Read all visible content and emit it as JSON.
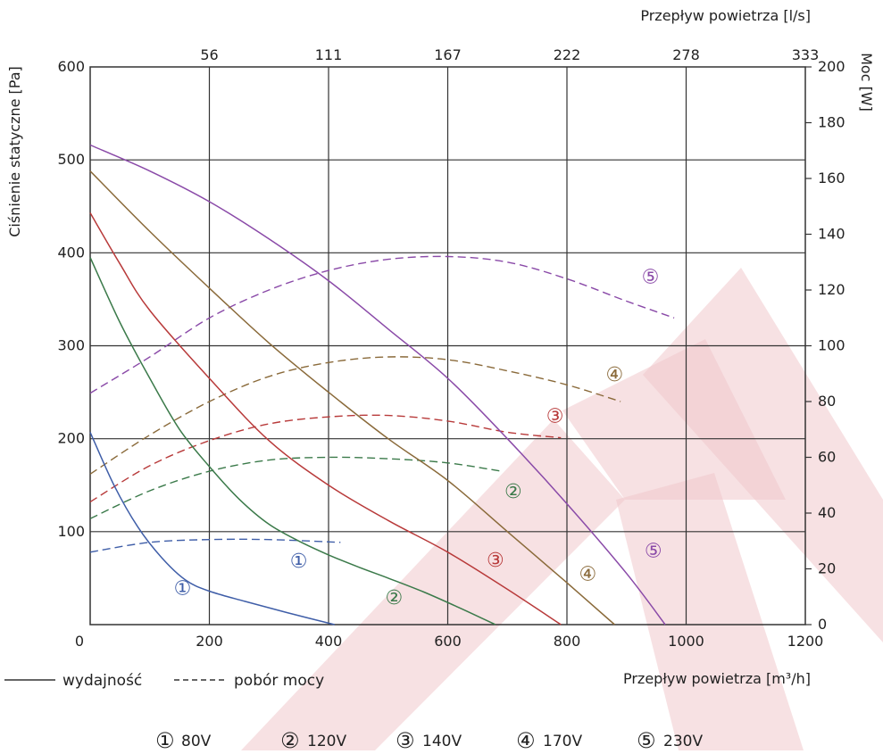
{
  "chart_data": {
    "type": "line",
    "x_axis": {
      "label": "Przepływ powietrza [m³/h]",
      "range": [
        0,
        1200
      ],
      "ticks": [
        0,
        200,
        400,
        600,
        800,
        1000,
        1200
      ],
      "tick_labels": [
        "0",
        "200",
        "400",
        "600",
        "800",
        "1000",
        "1200"
      ]
    },
    "x2_axis": {
      "label": "Przepływ powietrza [l/s]",
      "tick_labels": [
        "56",
        "111",
        "167",
        "222",
        "278",
        "333"
      ],
      "tick_positions_m3h": [
        200,
        400,
        600,
        800,
        1000,
        1200
      ]
    },
    "y_axis": {
      "label": "Ciśnienie statyczne [Pa]",
      "range": [
        0,
        600
      ],
      "ticks": [
        100,
        200,
        300,
        400,
        500,
        600
      ],
      "tick_labels": [
        "100",
        "200",
        "300",
        "400",
        "500",
        "600"
      ]
    },
    "y2_axis": {
      "label": "Moc [W]",
      "range": [
        0,
        200
      ],
      "ticks": [
        0,
        20,
        40,
        60,
        80,
        100,
        120,
        140,
        160,
        180,
        200
      ],
      "tick_labels": [
        "0",
        "20",
        "40",
        "60",
        "80",
        "100",
        "120",
        "140",
        "160",
        "180",
        "200"
      ]
    },
    "grid": true,
    "pressure_series": [
      {
        "id": 1,
        "color": "#3f5ea8",
        "label": "①",
        "label_pos": [
          155,
          40
        ],
        "points": [
          [
            0,
            207
          ],
          [
            40,
            150
          ],
          [
            80,
            105
          ],
          [
            120,
            72
          ],
          [
            160,
            48
          ],
          [
            200,
            36
          ],
          [
            260,
            25
          ],
          [
            330,
            13
          ],
          [
            410,
            0
          ]
        ]
      },
      {
        "id": 2,
        "color": "#3b7a4a",
        "label": "②",
        "label_pos": [
          510,
          30
        ],
        "points": [
          [
            0,
            395
          ],
          [
            50,
            325
          ],
          [
            100,
            265
          ],
          [
            150,
            210
          ],
          [
            200,
            170
          ],
          [
            250,
            135
          ],
          [
            300,
            108
          ],
          [
            350,
            90
          ],
          [
            400,
            75
          ],
          [
            450,
            62
          ],
          [
            500,
            50
          ],
          [
            560,
            35
          ],
          [
            620,
            18
          ],
          [
            680,
            0
          ]
        ]
      },
      {
        "id": 3,
        "color": "#b83a3a",
        "label": "③",
        "label_pos": [
          680,
          70
        ],
        "points": [
          [
            0,
            443
          ],
          [
            50,
            388
          ],
          [
            100,
            338
          ],
          [
            200,
            265
          ],
          [
            300,
            198
          ],
          [
            400,
            150
          ],
          [
            500,
            112
          ],
          [
            600,
            78
          ],
          [
            700,
            38
          ],
          [
            790,
            0
          ]
        ]
      },
      {
        "id": 4,
        "color": "#8a6a3a",
        "label": "④",
        "label_pos": [
          835,
          55
        ],
        "points": [
          [
            0,
            488
          ],
          [
            100,
            423
          ],
          [
            200,
            362
          ],
          [
            300,
            303
          ],
          [
            400,
            250
          ],
          [
            500,
            200
          ],
          [
            600,
            155
          ],
          [
            700,
            100
          ],
          [
            800,
            45
          ],
          [
            880,
            0
          ]
        ]
      },
      {
        "id": 5,
        "color": "#8a4aa8",
        "label": "⑤",
        "label_pos": [
          945,
          80
        ],
        "points": [
          [
            0,
            516
          ],
          [
            100,
            488
          ],
          [
            200,
            455
          ],
          [
            300,
            415
          ],
          [
            400,
            370
          ],
          [
            500,
            318
          ],
          [
            600,
            265
          ],
          [
            700,
            200
          ],
          [
            800,
            130
          ],
          [
            900,
            55
          ],
          [
            965,
            0
          ]
        ]
      }
    ],
    "power_series": [
      {
        "id": 1,
        "color": "#3f5ea8",
        "points": [
          [
            0,
            26
          ],
          [
            100,
            29.5
          ],
          [
            200,
            30.5
          ],
          [
            300,
            30.5
          ],
          [
            420,
            29.5
          ]
        ]
      },
      {
        "id": 2,
        "color": "#3b7a4a",
        "points": [
          [
            0,
            38
          ],
          [
            100,
            48
          ],
          [
            200,
            55
          ],
          [
            300,
            59
          ],
          [
            400,
            60
          ],
          [
            500,
            59.5
          ],
          [
            600,
            58
          ],
          [
            690,
            55
          ]
        ]
      },
      {
        "id": 3,
        "color": "#b83a3a",
        "points": [
          [
            0,
            44
          ],
          [
            100,
            57
          ],
          [
            200,
            66
          ],
          [
            300,
            72
          ],
          [
            400,
            74.5
          ],
          [
            500,
            75
          ],
          [
            600,
            73
          ],
          [
            700,
            69
          ],
          [
            790,
            67
          ]
        ]
      },
      {
        "id": 4,
        "color": "#8a6a3a",
        "points": [
          [
            0,
            54
          ],
          [
            100,
            68
          ],
          [
            200,
            80
          ],
          [
            300,
            89
          ],
          [
            400,
            94
          ],
          [
            500,
            96
          ],
          [
            600,
            95
          ],
          [
            700,
            91
          ],
          [
            800,
            86
          ],
          [
            890,
            80
          ]
        ]
      },
      {
        "id": 5,
        "color": "#8a4aa8",
        "points": [
          [
            0,
            83
          ],
          [
            100,
            96
          ],
          [
            200,
            110
          ],
          [
            300,
            120
          ],
          [
            400,
            127
          ],
          [
            500,
            131
          ],
          [
            600,
            132
          ],
          [
            700,
            130
          ],
          [
            800,
            124
          ],
          [
            900,
            116
          ],
          [
            980,
            110
          ]
        ]
      }
    ],
    "power_labels": [
      {
        "id": 2,
        "text": "②",
        "pos": [
          710,
          48
        ]
      },
      {
        "id": 3,
        "text": "③",
        "pos": [
          780,
          75
        ]
      },
      {
        "id": 4,
        "text": "④",
        "pos": [
          880,
          90
        ]
      },
      {
        "id": 5,
        "text": "⑤",
        "pos": [
          940,
          125
        ]
      }
    ],
    "line_style_legend": [
      {
        "style": "solid",
        "text": "wydajność"
      },
      {
        "style": "dashed",
        "text": "pobór mocy"
      }
    ],
    "voltage_legend": [
      {
        "symbol": "①",
        "text": "80V"
      },
      {
        "symbol": "②",
        "text": "120V"
      },
      {
        "symbol": "③",
        "text": "140V"
      },
      {
        "symbol": "④",
        "text": "170V"
      },
      {
        "symbol": "⑤",
        "text": "230V"
      }
    ]
  }
}
